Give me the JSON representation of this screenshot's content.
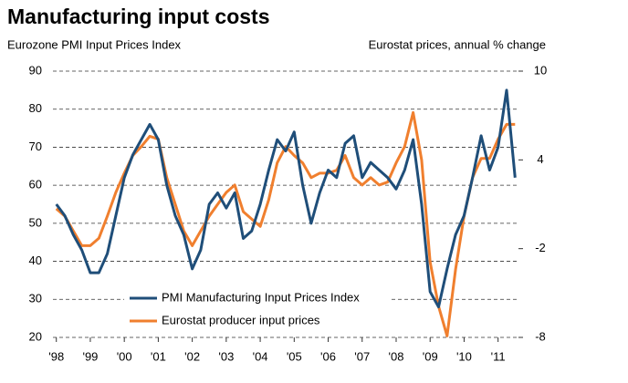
{
  "chart_data": {
    "type": "line",
    "title": "Manufacturing input costs",
    "y_label": "Eurozone PMI Input Prices Index",
    "y2_label": "Eurostat prices, annual % change",
    "x": [
      1998,
      1998.25,
      1998.5,
      1998.75,
      1999,
      1999.25,
      1999.5,
      1999.75,
      2000,
      2000.25,
      2000.5,
      2000.75,
      2001,
      2001.25,
      2001.5,
      2001.75,
      2002,
      2002.25,
      2002.5,
      2002.75,
      2003,
      2003.25,
      2003.5,
      2003.75,
      2004,
      2004.25,
      2004.5,
      2004.75,
      2005,
      2005.25,
      2005.5,
      2005.75,
      2006,
      2006.25,
      2006.5,
      2006.75,
      2007,
      2007.25,
      2007.5,
      2007.75,
      2008,
      2008.25,
      2008.5,
      2008.75,
      2009,
      2009.25,
      2009.5,
      2009.75,
      2010,
      2010.25,
      2010.5,
      2010.75,
      2011,
      2011.25,
      2011.5
    ],
    "series": [
      {
        "name": "PMI Manufacturing Input Prices Index",
        "color": "#1f4e79",
        "axis": "y",
        "values": [
          55,
          52,
          47,
          43,
          37,
          37,
          42,
          52,
          62,
          68,
          72,
          76,
          72,
          60,
          52,
          47,
          38,
          43,
          55,
          58,
          54,
          58,
          46,
          48,
          55,
          64,
          72,
          69,
          74,
          60,
          50,
          58,
          64,
          62,
          71,
          73,
          62,
          66,
          64,
          62,
          59,
          64,
          72,
          55,
          32,
          28,
          38,
          47,
          52,
          62,
          73,
          64,
          70,
          85,
          62
        ]
      },
      {
        "name": "Eurostat producer input prices",
        "color": "#f07f2e",
        "axis": "y2",
        "values": [
          0.7,
          0.2,
          -0.8,
          -1.8,
          -1.8,
          -1.3,
          0.2,
          1.8,
          3.1,
          4.3,
          4.9,
          5.6,
          5.4,
          2.8,
          1.0,
          -0.8,
          -1.8,
          -0.8,
          0.2,
          1.0,
          1.8,
          2.3,
          0.5,
          0.0,
          -0.5,
          1.3,
          3.8,
          4.9,
          4.3,
          3.8,
          2.8,
          3.1,
          3.1,
          3.3,
          4.3,
          2.8,
          2.3,
          2.8,
          2.3,
          2.5,
          3.8,
          4.9,
          7.2,
          4.0,
          -2.9,
          -5.9,
          -7.9,
          -3.4,
          0.2,
          2.8,
          4.1,
          4.1,
          5.4,
          6.4,
          6.4
        ]
      }
    ],
    "xlim": [
      1997.9,
      2011.6
    ],
    "xticks": [
      {
        "value": 1998,
        "label": "'98"
      },
      {
        "value": 1999,
        "label": "'99"
      },
      {
        "value": 2000,
        "label": "'00"
      },
      {
        "value": 2001,
        "label": "'01"
      },
      {
        "value": 2002,
        "label": "'02"
      },
      {
        "value": 2003,
        "label": "'03"
      },
      {
        "value": 2004,
        "label": "'04"
      },
      {
        "value": 2005,
        "label": "'05"
      },
      {
        "value": 2006,
        "label": "'06"
      },
      {
        "value": 2007,
        "label": "'07"
      },
      {
        "value": 2008,
        "label": "'08"
      },
      {
        "value": 2009,
        "label": "'09"
      },
      {
        "value": 2010,
        "label": "'10"
      },
      {
        "value": 2011,
        "label": "'11"
      }
    ],
    "ylim": [
      20,
      90
    ],
    "yticks": [
      20,
      30,
      40,
      50,
      60,
      70,
      80,
      90
    ],
    "y2lim": [
      -8,
      10
    ],
    "y2ticks": [
      -8,
      -2,
      4,
      10
    ],
    "grid": true,
    "legend": "bottom-center"
  }
}
